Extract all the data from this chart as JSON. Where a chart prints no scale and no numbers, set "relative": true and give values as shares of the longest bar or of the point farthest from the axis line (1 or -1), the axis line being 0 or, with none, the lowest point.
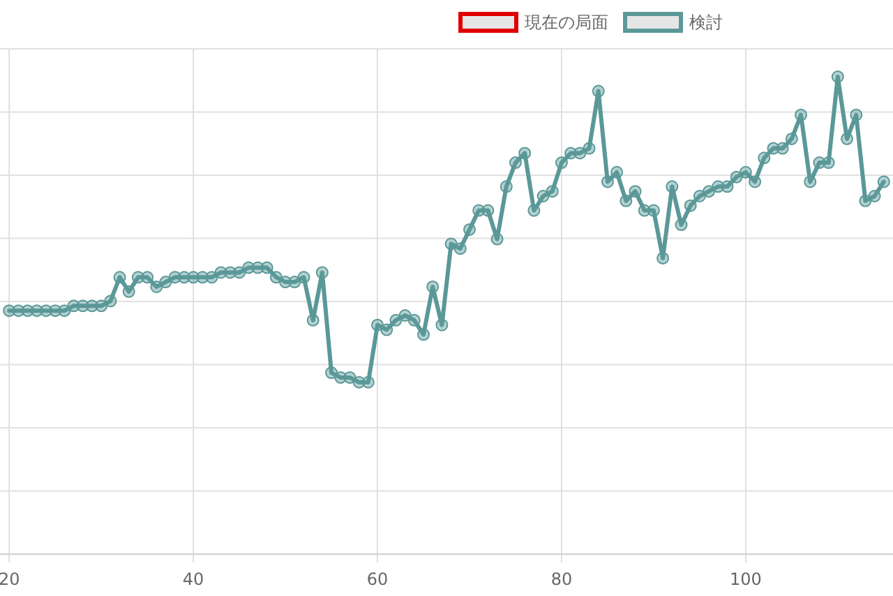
{
  "chart_data": {
    "type": "line",
    "relative": true,
    "x": [
      20,
      21,
      22,
      23,
      24,
      25,
      26,
      27,
      28,
      29,
      30,
      31,
      32,
      33,
      34,
      35,
      36,
      37,
      38,
      39,
      40,
      41,
      42,
      43,
      44,
      45,
      46,
      47,
      48,
      49,
      50,
      51,
      52,
      53,
      54,
      55,
      56,
      57,
      58,
      59,
      60,
      61,
      62,
      63,
      64,
      65,
      66,
      67,
      68,
      69,
      70,
      71,
      72,
      73,
      74,
      75,
      76,
      77,
      78,
      79,
      80,
      81,
      82,
      83,
      84,
      85,
      86,
      87,
      88,
      89,
      90,
      91,
      92,
      93,
      94,
      95,
      96,
      97,
      98,
      99,
      100,
      101,
      102,
      103,
      104,
      105,
      106,
      107,
      108,
      109,
      110,
      111,
      112,
      113,
      114,
      115
    ],
    "xlim": [
      19,
      116
    ],
    "xticks": [
      20,
      40,
      60,
      80,
      100
    ],
    "grid": true,
    "legend": "top",
    "marker": "circle",
    "series": [
      {
        "name": "現在の局面",
        "color": "#e00000",
        "values": [
          null,
          null,
          null,
          null,
          null,
          null,
          null,
          null,
          null,
          null,
          null,
          null,
          null,
          null,
          null,
          null,
          null,
          null,
          null,
          null,
          null,
          null,
          null,
          null,
          null,
          null,
          null,
          null,
          null,
          null,
          null,
          null,
          null,
          null,
          null,
          null,
          null,
          null,
          null,
          null,
          null,
          null,
          null,
          null,
          null,
          null,
          null,
          null,
          null,
          null,
          null,
          null,
          null,
          null,
          null,
          null,
          null,
          null,
          null,
          null,
          null,
          null,
          null,
          null,
          null,
          null,
          null,
          null,
          null,
          null,
          null,
          null,
          null,
          null,
          null,
          null,
          null,
          null,
          null,
          null,
          null,
          null,
          null,
          null,
          null,
          null,
          null,
          null,
          null,
          null,
          null,
          null,
          null,
          null,
          null,
          null
        ]
      },
      {
        "name": "検討",
        "color": "#5b9898",
        "values": [
          0.51,
          0.51,
          0.51,
          0.51,
          0.51,
          0.51,
          0.51,
          0.52,
          0.52,
          0.52,
          0.52,
          0.53,
          0.58,
          0.55,
          0.58,
          0.58,
          0.56,
          0.57,
          0.58,
          0.58,
          0.58,
          0.58,
          0.58,
          0.59,
          0.59,
          0.59,
          0.6,
          0.6,
          0.6,
          0.58,
          0.57,
          0.57,
          0.58,
          0.49,
          0.59,
          0.38,
          0.37,
          0.37,
          0.36,
          0.36,
          0.48,
          0.47,
          0.49,
          0.5,
          0.49,
          0.46,
          0.56,
          0.48,
          0.65,
          0.64,
          0.68,
          0.72,
          0.72,
          0.66,
          0.77,
          0.82,
          0.84,
          0.72,
          0.75,
          0.76,
          0.82,
          0.84,
          0.84,
          0.85,
          0.97,
          0.78,
          0.8,
          0.74,
          0.76,
          0.72,
          0.72,
          0.62,
          0.77,
          0.69,
          0.73,
          0.75,
          0.76,
          0.77,
          0.77,
          0.79,
          0.8,
          0.78,
          0.83,
          0.85,
          0.85,
          0.87,
          0.92,
          0.78,
          0.82,
          0.82,
          1,
          0.87,
          0.92,
          0.74,
          0.75,
          0.78
        ]
      }
    ]
  }
}
